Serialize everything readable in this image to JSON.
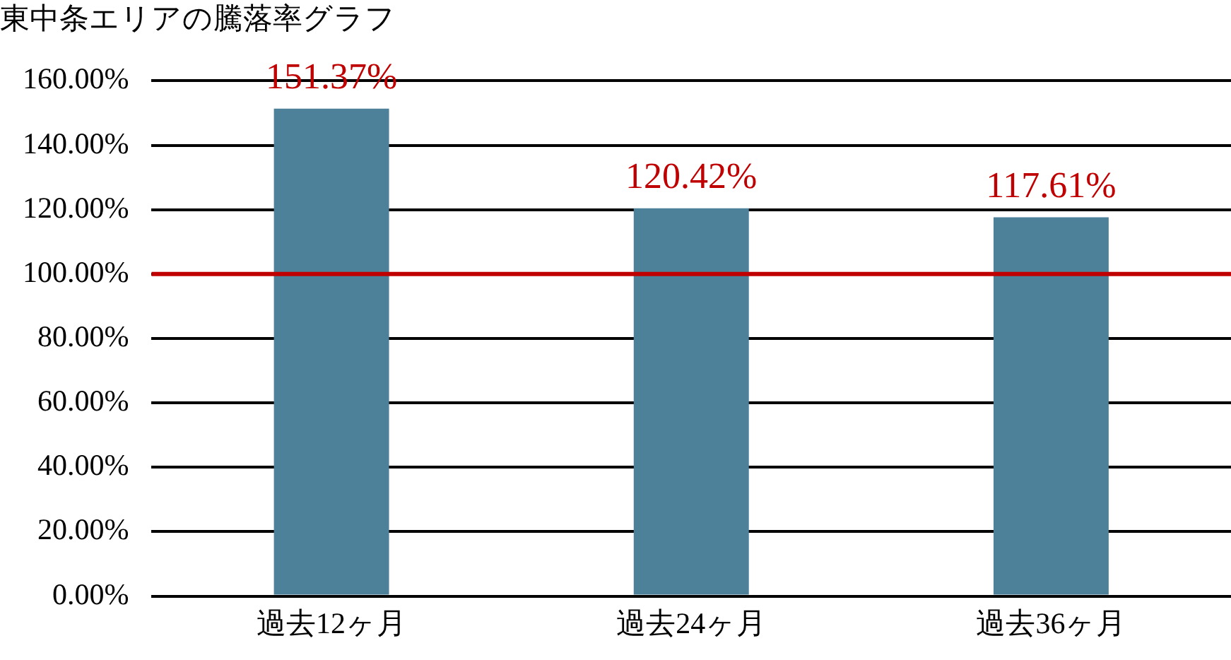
{
  "chart_data": {
    "type": "bar",
    "title": "東中条エリアの騰落率グラフ",
    "categories": [
      "過去12ヶ月",
      "過去24ヶ月",
      "過去36ヶ月"
    ],
    "values": [
      151.37,
      120.42,
      117.61
    ],
    "color": "#4d8199",
    "value_labels": [
      "151.37%",
      "120.42%",
      "117.61%"
    ],
    "ylim": [
      0,
      160
    ],
    "yticks": [
      {
        "value": 0,
        "label": "0.00%"
      },
      {
        "value": 20,
        "label": "20.00%"
      },
      {
        "value": 40,
        "label": "40.00%"
      },
      {
        "value": 60,
        "label": "60.00%"
      },
      {
        "value": 80,
        "label": "80.00%"
      },
      {
        "value": 100,
        "label": "100.00%"
      },
      {
        "value": 120,
        "label": "120.00%"
      },
      {
        "value": 140,
        "label": "140.00%"
      },
      {
        "value": 160,
        "label": "160.00%"
      }
    ],
    "grid": "y",
    "ref_lines": [
      {
        "axis": "y",
        "value": 100,
        "color": "#c00000"
      }
    ]
  }
}
